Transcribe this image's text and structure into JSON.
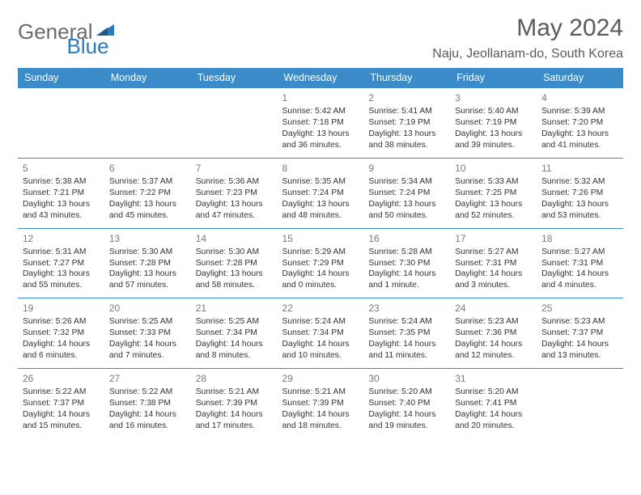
{
  "logo": {
    "text1": "General",
    "text2": "Blue"
  },
  "title": "May 2024",
  "location": "Naju, Jeollanam-do, South Korea",
  "colors": {
    "header_bg": "#3b8bc8",
    "header_text": "#ffffff",
    "border": "#3b8bc8",
    "logo_gray": "#6b6b6b",
    "logo_blue": "#2b7bbf",
    "text": "#333333",
    "daynum": "#7a7a7a"
  },
  "weekdays": [
    "Sunday",
    "Monday",
    "Tuesday",
    "Wednesday",
    "Thursday",
    "Friday",
    "Saturday"
  ],
  "weeks": [
    [
      null,
      null,
      null,
      {
        "d": "1",
        "sr": "Sunrise: 5:42 AM",
        "ss": "Sunset: 7:18 PM",
        "dl1": "Daylight: 13 hours",
        "dl2": "and 36 minutes."
      },
      {
        "d": "2",
        "sr": "Sunrise: 5:41 AM",
        "ss": "Sunset: 7:19 PM",
        "dl1": "Daylight: 13 hours",
        "dl2": "and 38 minutes."
      },
      {
        "d": "3",
        "sr": "Sunrise: 5:40 AM",
        "ss": "Sunset: 7:19 PM",
        "dl1": "Daylight: 13 hours",
        "dl2": "and 39 minutes."
      },
      {
        "d": "4",
        "sr": "Sunrise: 5:39 AM",
        "ss": "Sunset: 7:20 PM",
        "dl1": "Daylight: 13 hours",
        "dl2": "and 41 minutes."
      }
    ],
    [
      {
        "d": "5",
        "sr": "Sunrise: 5:38 AM",
        "ss": "Sunset: 7:21 PM",
        "dl1": "Daylight: 13 hours",
        "dl2": "and 43 minutes."
      },
      {
        "d": "6",
        "sr": "Sunrise: 5:37 AM",
        "ss": "Sunset: 7:22 PM",
        "dl1": "Daylight: 13 hours",
        "dl2": "and 45 minutes."
      },
      {
        "d": "7",
        "sr": "Sunrise: 5:36 AM",
        "ss": "Sunset: 7:23 PM",
        "dl1": "Daylight: 13 hours",
        "dl2": "and 47 minutes."
      },
      {
        "d": "8",
        "sr": "Sunrise: 5:35 AM",
        "ss": "Sunset: 7:24 PM",
        "dl1": "Daylight: 13 hours",
        "dl2": "and 48 minutes."
      },
      {
        "d": "9",
        "sr": "Sunrise: 5:34 AM",
        "ss": "Sunset: 7:24 PM",
        "dl1": "Daylight: 13 hours",
        "dl2": "and 50 minutes."
      },
      {
        "d": "10",
        "sr": "Sunrise: 5:33 AM",
        "ss": "Sunset: 7:25 PM",
        "dl1": "Daylight: 13 hours",
        "dl2": "and 52 minutes."
      },
      {
        "d": "11",
        "sr": "Sunrise: 5:32 AM",
        "ss": "Sunset: 7:26 PM",
        "dl1": "Daylight: 13 hours",
        "dl2": "and 53 minutes."
      }
    ],
    [
      {
        "d": "12",
        "sr": "Sunrise: 5:31 AM",
        "ss": "Sunset: 7:27 PM",
        "dl1": "Daylight: 13 hours",
        "dl2": "and 55 minutes."
      },
      {
        "d": "13",
        "sr": "Sunrise: 5:30 AM",
        "ss": "Sunset: 7:28 PM",
        "dl1": "Daylight: 13 hours",
        "dl2": "and 57 minutes."
      },
      {
        "d": "14",
        "sr": "Sunrise: 5:30 AM",
        "ss": "Sunset: 7:28 PM",
        "dl1": "Daylight: 13 hours",
        "dl2": "and 58 minutes."
      },
      {
        "d": "15",
        "sr": "Sunrise: 5:29 AM",
        "ss": "Sunset: 7:29 PM",
        "dl1": "Daylight: 14 hours",
        "dl2": "and 0 minutes."
      },
      {
        "d": "16",
        "sr": "Sunrise: 5:28 AM",
        "ss": "Sunset: 7:30 PM",
        "dl1": "Daylight: 14 hours",
        "dl2": "and 1 minute."
      },
      {
        "d": "17",
        "sr": "Sunrise: 5:27 AM",
        "ss": "Sunset: 7:31 PM",
        "dl1": "Daylight: 14 hours",
        "dl2": "and 3 minutes."
      },
      {
        "d": "18",
        "sr": "Sunrise: 5:27 AM",
        "ss": "Sunset: 7:31 PM",
        "dl1": "Daylight: 14 hours",
        "dl2": "and 4 minutes."
      }
    ],
    [
      {
        "d": "19",
        "sr": "Sunrise: 5:26 AM",
        "ss": "Sunset: 7:32 PM",
        "dl1": "Daylight: 14 hours",
        "dl2": "and 6 minutes."
      },
      {
        "d": "20",
        "sr": "Sunrise: 5:25 AM",
        "ss": "Sunset: 7:33 PM",
        "dl1": "Daylight: 14 hours",
        "dl2": "and 7 minutes."
      },
      {
        "d": "21",
        "sr": "Sunrise: 5:25 AM",
        "ss": "Sunset: 7:34 PM",
        "dl1": "Daylight: 14 hours",
        "dl2": "and 8 minutes."
      },
      {
        "d": "22",
        "sr": "Sunrise: 5:24 AM",
        "ss": "Sunset: 7:34 PM",
        "dl1": "Daylight: 14 hours",
        "dl2": "and 10 minutes."
      },
      {
        "d": "23",
        "sr": "Sunrise: 5:24 AM",
        "ss": "Sunset: 7:35 PM",
        "dl1": "Daylight: 14 hours",
        "dl2": "and 11 minutes."
      },
      {
        "d": "24",
        "sr": "Sunrise: 5:23 AM",
        "ss": "Sunset: 7:36 PM",
        "dl1": "Daylight: 14 hours",
        "dl2": "and 12 minutes."
      },
      {
        "d": "25",
        "sr": "Sunrise: 5:23 AM",
        "ss": "Sunset: 7:37 PM",
        "dl1": "Daylight: 14 hours",
        "dl2": "and 13 minutes."
      }
    ],
    [
      {
        "d": "26",
        "sr": "Sunrise: 5:22 AM",
        "ss": "Sunset: 7:37 PM",
        "dl1": "Daylight: 14 hours",
        "dl2": "and 15 minutes."
      },
      {
        "d": "27",
        "sr": "Sunrise: 5:22 AM",
        "ss": "Sunset: 7:38 PM",
        "dl1": "Daylight: 14 hours",
        "dl2": "and 16 minutes."
      },
      {
        "d": "28",
        "sr": "Sunrise: 5:21 AM",
        "ss": "Sunset: 7:39 PM",
        "dl1": "Daylight: 14 hours",
        "dl2": "and 17 minutes."
      },
      {
        "d": "29",
        "sr": "Sunrise: 5:21 AM",
        "ss": "Sunset: 7:39 PM",
        "dl1": "Daylight: 14 hours",
        "dl2": "and 18 minutes."
      },
      {
        "d": "30",
        "sr": "Sunrise: 5:20 AM",
        "ss": "Sunset: 7:40 PM",
        "dl1": "Daylight: 14 hours",
        "dl2": "and 19 minutes."
      },
      {
        "d": "31",
        "sr": "Sunrise: 5:20 AM",
        "ss": "Sunset: 7:41 PM",
        "dl1": "Daylight: 14 hours",
        "dl2": "and 20 minutes."
      },
      null
    ]
  ]
}
